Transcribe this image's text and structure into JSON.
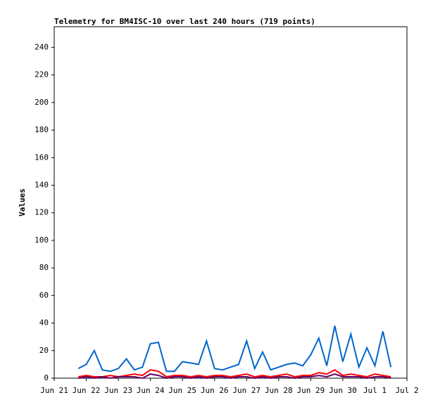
{
  "chart_data": {
    "type": "line",
    "title": "Telemetry for BM4ISC-10 over last 240 hours (719 points)",
    "y_label": "Values",
    "x": [
      0.75,
      1.0,
      1.25,
      1.5,
      1.75,
      2.0,
      2.25,
      2.5,
      2.75,
      3.0,
      3.25,
      3.5,
      3.75,
      4.0,
      4.25,
      4.5,
      4.75,
      5.0,
      5.25,
      5.5,
      5.75,
      6.0,
      6.25,
      6.5,
      6.75,
      7.0,
      7.25,
      7.5,
      7.75,
      8.0,
      8.25,
      8.5,
      8.75,
      9.0,
      9.25,
      9.5,
      9.75,
      10.0,
      10.25,
      10.5
    ],
    "series": [
      {
        "color": "#0066cc",
        "values": [
          7,
          10,
          20,
          6,
          5,
          7,
          14,
          6,
          8,
          25,
          26,
          5,
          5,
          12,
          11,
          10,
          27,
          7,
          6,
          8,
          10,
          27,
          7,
          19,
          6,
          8,
          10,
          11,
          9,
          17,
          29,
          9,
          38,
          12,
          32,
          8,
          22,
          9,
          34,
          8
        ]
      },
      {
        "color": "#ff0000",
        "values": [
          1,
          2,
          1,
          1,
          2,
          1,
          2,
          3,
          2,
          6,
          5,
          1,
          2,
          2,
          1,
          2,
          1,
          2,
          2,
          1,
          2,
          3,
          1,
          2,
          1,
          2,
          3,
          1,
          2,
          2,
          4,
          3,
          6,
          2,
          3,
          2,
          1,
          3,
          2,
          1
        ]
      },
      {
        "color": "#660066",
        "values": [
          0,
          1,
          0,
          1,
          0,
          1,
          1,
          1,
          0,
          3,
          2,
          0,
          1,
          1,
          0,
          1,
          0,
          1,
          1,
          0,
          1,
          1,
          0,
          1,
          0,
          1,
          1,
          0,
          1,
          1,
          2,
          1,
          3,
          1,
          1,
          1,
          0,
          1,
          1,
          0
        ]
      }
    ],
    "xlim": [
      0,
      11
    ],
    "xticks": [
      {
        "value": 0,
        "label": "Jun 21"
      },
      {
        "value": 1,
        "label": "Jun 22"
      },
      {
        "value": 2,
        "label": "Jun 23"
      },
      {
        "value": 3,
        "label": "Jun 24"
      },
      {
        "value": 4,
        "label": "Jun 25"
      },
      {
        "value": 5,
        "label": "Jun 26"
      },
      {
        "value": 6,
        "label": "Jun 27"
      },
      {
        "value": 7,
        "label": "Jun 28"
      },
      {
        "value": 8,
        "label": "Jun 29"
      },
      {
        "value": 9,
        "label": "Jun 30"
      },
      {
        "value": 10,
        "label": "Jul 1"
      },
      {
        "value": 11,
        "label": "Jul 2"
      }
    ],
    "ylim": [
      0,
      255
    ],
    "yticks": [
      0,
      20,
      40,
      60,
      80,
      100,
      120,
      140,
      160,
      180,
      200,
      220,
      240
    ]
  }
}
